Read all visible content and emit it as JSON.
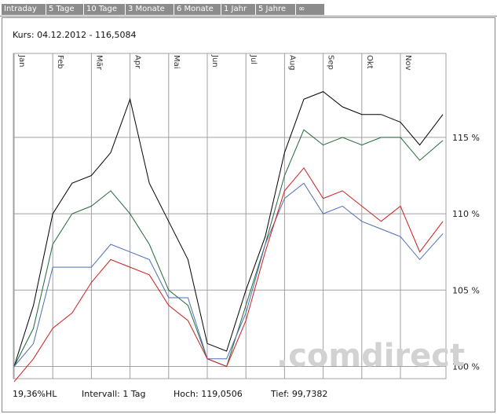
{
  "tabs": [
    "Intraday",
    "5 Tage",
    "10 Tage",
    "3 Monate",
    "6 Monate",
    "1 Jahr",
    "5 Jahre",
    "∞"
  ],
  "header": {
    "kurs": "Kurs: 04.12.2012 - 116,5084"
  },
  "footer": {
    "hl": "19,36%HL",
    "intervall": "Intervall: 1 Tag",
    "hoch": "Hoch: 119,0506",
    "tief": "Tief: 99,7382"
  },
  "watermark": ".comdirect",
  "colors": {
    "black": "#000000",
    "green": "#1f6b3a",
    "blue": "#4a6fb5",
    "red": "#cc1f1f",
    "grid": "#a0a0a0"
  },
  "chart_data": {
    "type": "line",
    "months": [
      "Jan",
      "Feb",
      "Mär",
      "Apr",
      "Mai",
      "Jun",
      "Jul",
      "Aug",
      "Sep",
      "Okt",
      "Nov"
    ],
    "y_ticks": [
      "100 %",
      "105 %",
      "110 %",
      "115 %"
    ],
    "ylim": [
      99.2,
      120.5
    ],
    "grid": true,
    "x_months": [
      0,
      0.5,
      1,
      1.5,
      2,
      2.5,
      3,
      3.5,
      4,
      4.5,
      5,
      5.5,
      6,
      6.5,
      7,
      7.5,
      8,
      8.5,
      9,
      9.5,
      10,
      10.5,
      11.1
    ],
    "series": [
      {
        "color": "black",
        "values": [
          100,
          104,
          110,
          112,
          112.5,
          114,
          117.5,
          112,
          109.5,
          107,
          101.5,
          101,
          105,
          108.5,
          114,
          117.5,
          118,
          117,
          116.5,
          116.5,
          116,
          114.5,
          116.5
        ]
      },
      {
        "color": "green",
        "values": [
          100,
          102.5,
          108,
          110,
          110.5,
          111.5,
          110,
          108,
          105,
          104,
          100.5,
          100,
          104,
          108,
          112.5,
          115.5,
          114.5,
          115,
          114.5,
          115,
          115,
          113.5,
          114.8
        ]
      },
      {
        "color": "blue",
        "values": [
          100,
          101.5,
          106.5,
          106.5,
          106.5,
          108,
          107.5,
          107,
          104.5,
          104.5,
          100.5,
          100.5,
          103.5,
          108,
          111,
          112,
          110,
          110.5,
          109.5,
          109,
          108.5,
          107,
          108.7
        ]
      },
      {
        "color": "red",
        "values": [
          99,
          100.5,
          102.5,
          103.5,
          105.5,
          107,
          106.5,
          106,
          104,
          103,
          100.5,
          100,
          103,
          107.5,
          111.5,
          113,
          111,
          111.5,
          110.5,
          109.5,
          110.5,
          107.5,
          109.5
        ]
      }
    ]
  }
}
